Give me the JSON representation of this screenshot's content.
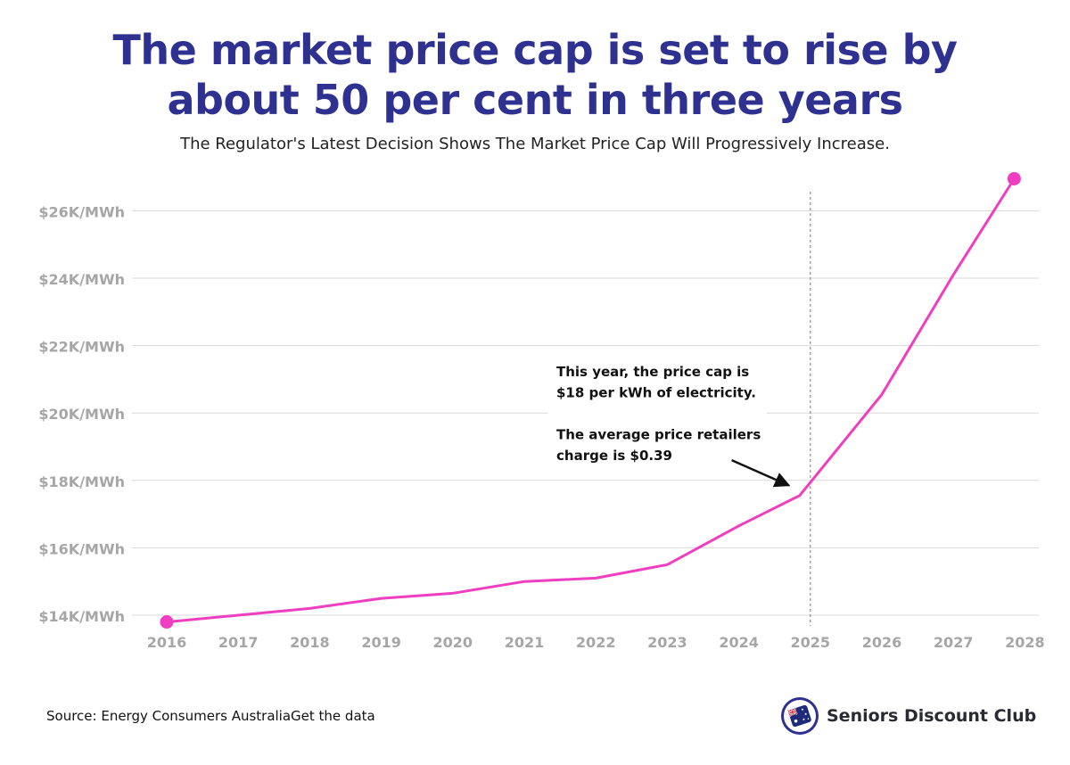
{
  "title_line1": "The market price cap is set to rise by",
  "title_line2": "about 50 per cent in three years",
  "subtitle": "The Regulator's Latest Decision Shows The Market Price Cap Will Progressively Increase.",
  "source": "Source: Energy Consumers AustraliaGet the data",
  "brand": {
    "name": "Seniors Discount Club",
    "logo_icon": "australia-flag-tag-icon"
  },
  "colors": {
    "title": "#2f3190",
    "line": "#ef3fc0",
    "grid": "#d9d9d9",
    "tick": "#a6a6a6",
    "annotation_arrow": "#111111"
  },
  "chart_data": {
    "type": "line",
    "x": [
      2016,
      2017,
      2018,
      2019,
      2020,
      2021,
      2022,
      2023,
      2024,
      2025,
      2026,
      2027,
      2028
    ],
    "x_tick_labels": [
      "2016",
      "2017",
      "2018",
      "2019",
      "2020",
      "2021",
      "2022",
      "2023",
      "2024",
      "2025",
      "2026",
      "2027",
      "2028"
    ],
    "series": [
      {
        "points": [
          [
            2016,
            13800
          ],
          [
            2017,
            14000
          ],
          [
            2018,
            14200
          ],
          [
            2019,
            14500
          ],
          [
            2020,
            14650
          ],
          [
            2021,
            15000
          ],
          [
            2022,
            15100
          ],
          [
            2023,
            15500
          ],
          [
            2024,
            16650
          ],
          [
            2024.85,
            17550
          ],
          [
            2026,
            20550
          ],
          [
            2027,
            24100
          ],
          [
            2027.85,
            26950
          ]
        ],
        "markers": [
          [
            2016,
            13800
          ],
          [
            2027.85,
            26950
          ]
        ]
      }
    ],
    "y_ticks": [
      14000,
      16000,
      18000,
      20000,
      22000,
      24000,
      26000
    ],
    "y_tick_labels": [
      "$14K/MWh",
      "$16K/MWh",
      "$18K/MWh",
      "$20K/MWh",
      "$22K/MWh",
      "$24K/MWh",
      "$26K/MWh"
    ],
    "xlim": [
      2016,
      2028
    ],
    "ylim": [
      13500,
      27200
    ],
    "grid": "horizontal",
    "reference_line": {
      "x": 2025,
      "style": "dashed"
    },
    "annotation": {
      "lines": [
        "This year, the price cap is",
        "$18 per kWh of electricity.",
        "",
        "The average price retailers",
        "charge is $0.39"
      ],
      "arrow_from": [
        2023.9,
        18600
      ],
      "arrow_to": [
        2024.7,
        17850
      ]
    }
  }
}
